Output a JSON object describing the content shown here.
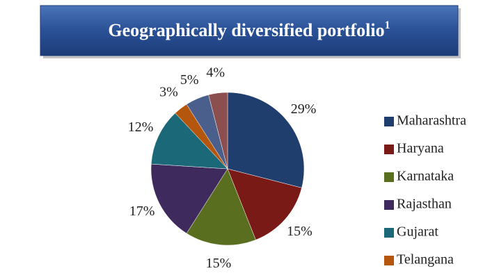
{
  "chart_data": {
    "type": "pie",
    "title": "Geographically diversified portfolio",
    "title_footnote": "1",
    "categories": [
      "Maharashtra",
      "Haryana",
      "Karnataka",
      "Rajasthan",
      "Gujarat",
      "Telangana",
      null,
      null
    ],
    "values": [
      29,
      15,
      15,
      17,
      12,
      3,
      5,
      4
    ],
    "value_labels": [
      "29%",
      "15%",
      "15%",
      "17%",
      "12%",
      "3%",
      "5%",
      "4%"
    ],
    "colors": [
      "#1f3e6e",
      "#7a1a17",
      "#5a6e1f",
      "#3e2a5c",
      "#1a6878",
      "#b5560f",
      "#4a5f8c",
      "#8c4f4f"
    ],
    "legend": "right"
  }
}
